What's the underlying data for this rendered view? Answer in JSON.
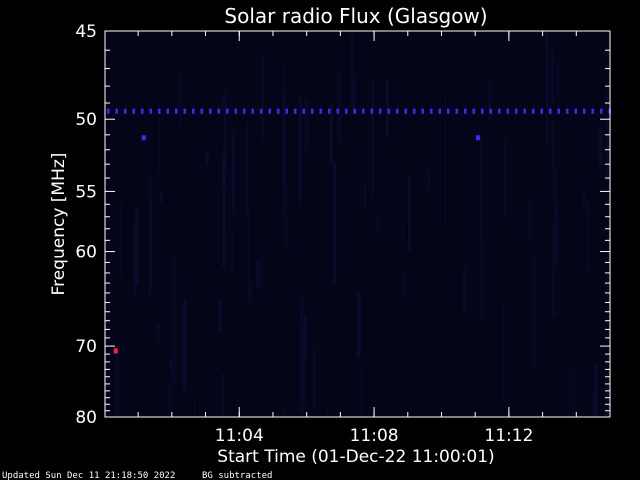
{
  "chart_data": {
    "type": "heatmap",
    "title": "Solar radio Flux (Glasgow)",
    "xlabel": "Start Time (01-Dec-22 11:00:01)",
    "ylabel": "Frequency [MHz]",
    "x_ticks": [
      "11:04",
      "11:08",
      "11:12"
    ],
    "y_ticks": [
      45,
      50,
      55,
      60,
      70,
      80
    ],
    "y_scale": "reciprocal",
    "xlim": [
      "11:00:01",
      "11:15:00"
    ],
    "ylim": [
      80,
      45
    ],
    "background_color": "#05051a",
    "features": [
      {
        "kind": "band",
        "frequency_mhz": 49.5,
        "color": "#3a2cff",
        "start": "11:00:01",
        "end": "11:15:00"
      },
      {
        "kind": "spot",
        "time": "11:01:10",
        "frequency_mhz": 51.2,
        "color": "#3a2cff"
      },
      {
        "kind": "spot",
        "time": "11:11:05",
        "frequency_mhz": 51.2,
        "color": "#3a2cff"
      },
      {
        "kind": "spot",
        "time": "11:00:20",
        "frequency_mhz": 70.6,
        "color": "#ff1a4a"
      }
    ]
  },
  "footer": {
    "updated": "Updated Sun Dec 11 21:18:50 2022",
    "note": "BG subtracted"
  }
}
